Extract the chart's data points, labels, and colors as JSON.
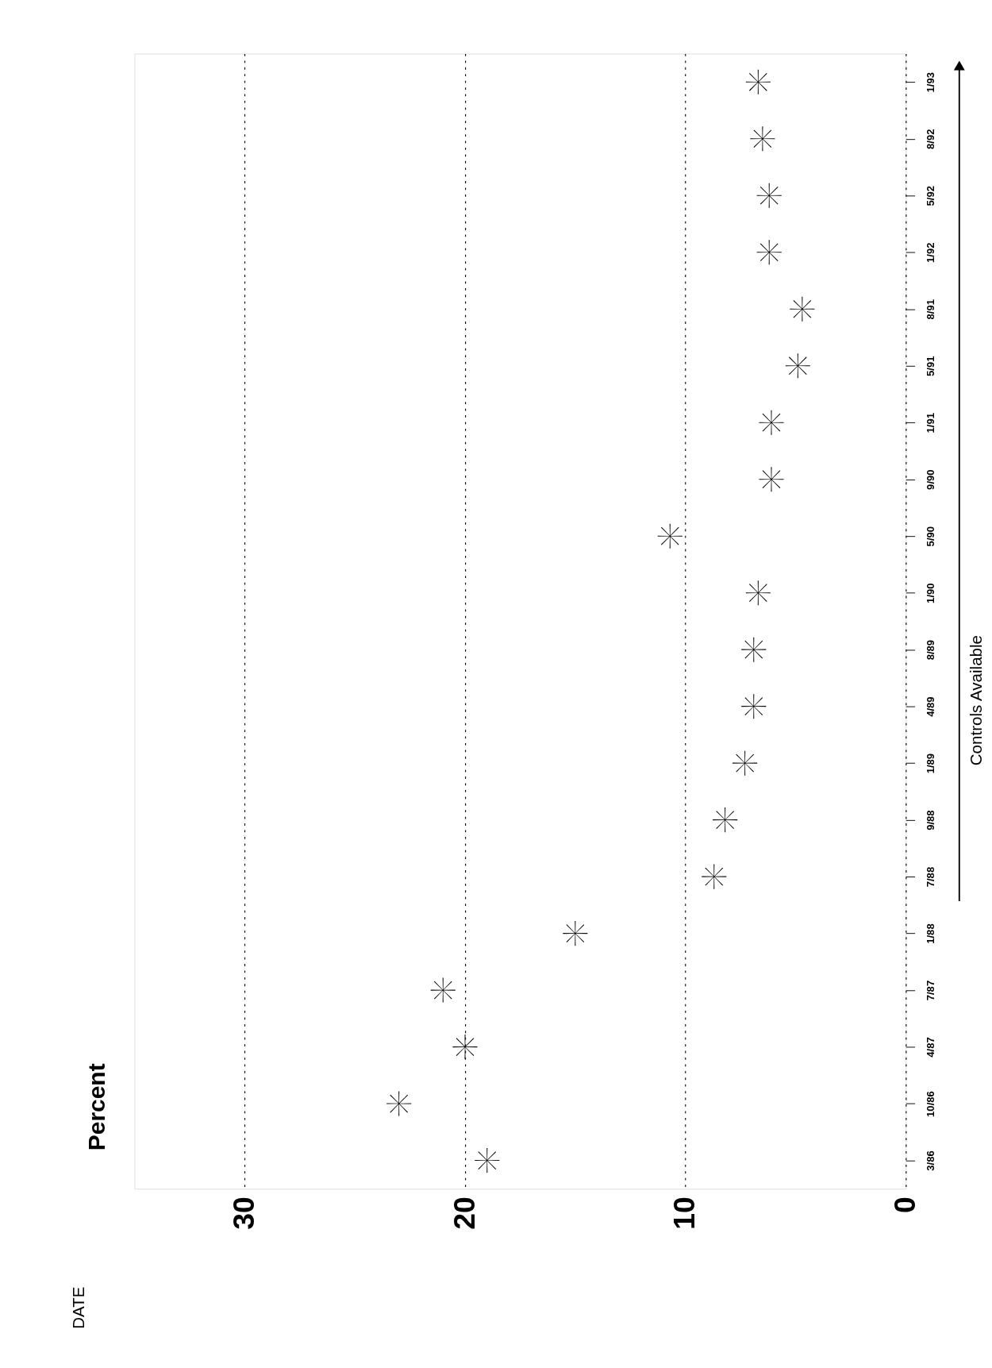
{
  "chart_data": {
    "type": "scatter",
    "orientation": "horizontal",
    "ylabel": "Percent",
    "categories": [
      "1/93",
      "8/92",
      "5/92",
      "1/92",
      "8/91",
      "5/91",
      "1/91",
      "9/90",
      "5/90",
      "1/90",
      "8/89",
      "4/89",
      "1/89",
      "9/88",
      "7/88",
      "1/88",
      "7/87",
      "4/87",
      "10/86",
      "3/86"
    ],
    "series": [
      {
        "color": "#000000",
        "values": [
          6.7,
          6.5,
          6.2,
          6.2,
          4.7,
          4.9,
          6.1,
          6.1,
          10.7,
          6.7,
          6.9,
          6.9,
          7.3,
          8.2,
          8.7,
          15.0,
          21.0,
          20.0,
          23.0,
          19.0
        ]
      }
    ],
    "xlim": [
      35,
      0
    ],
    "xticks": [
      0,
      10,
      20,
      30
    ],
    "grid": "x",
    "marker": "cross",
    "legend": false,
    "annotations": [
      "Controls Available",
      "DATE"
    ]
  }
}
